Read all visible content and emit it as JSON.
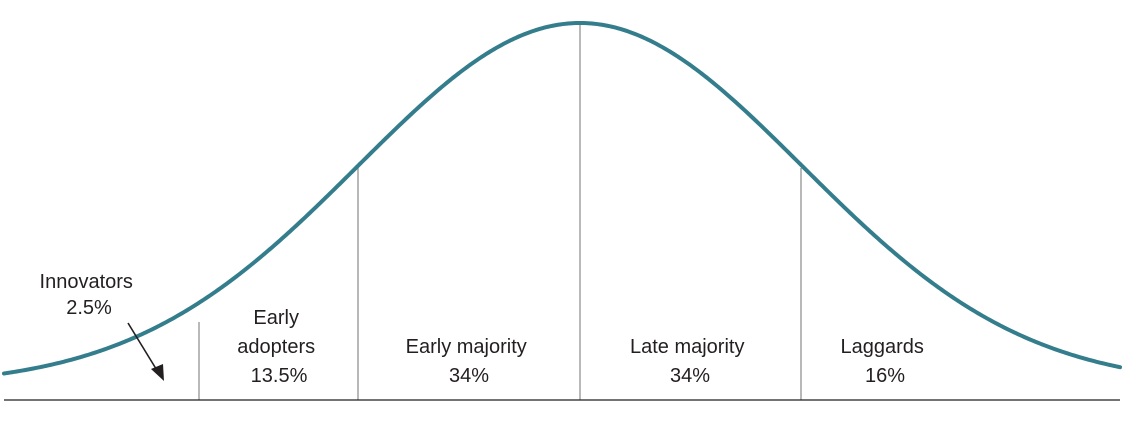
{
  "diagram": {
    "curve_color": "#347d8c",
    "line_color": "#8a8a8a",
    "baseline_color": "#231f20",
    "segments": [
      {
        "name": "Innovators",
        "label_lines": [
          "Innovators",
          "2.5%"
        ],
        "percent": 2.5
      },
      {
        "name": "Early adopters",
        "label_lines": [
          "Early",
          "adopters",
          "13.5%"
        ],
        "percent": 13.5
      },
      {
        "name": "Early majority",
        "label_lines": [
          "Early majority",
          "34%"
        ],
        "percent": 34
      },
      {
        "name": "Late majority",
        "label_lines": [
          "Late majority",
          "34%"
        ],
        "percent": 34
      },
      {
        "name": "Laggards",
        "label_lines": [
          "Laggards",
          "16%"
        ],
        "percent": 16
      }
    ]
  }
}
